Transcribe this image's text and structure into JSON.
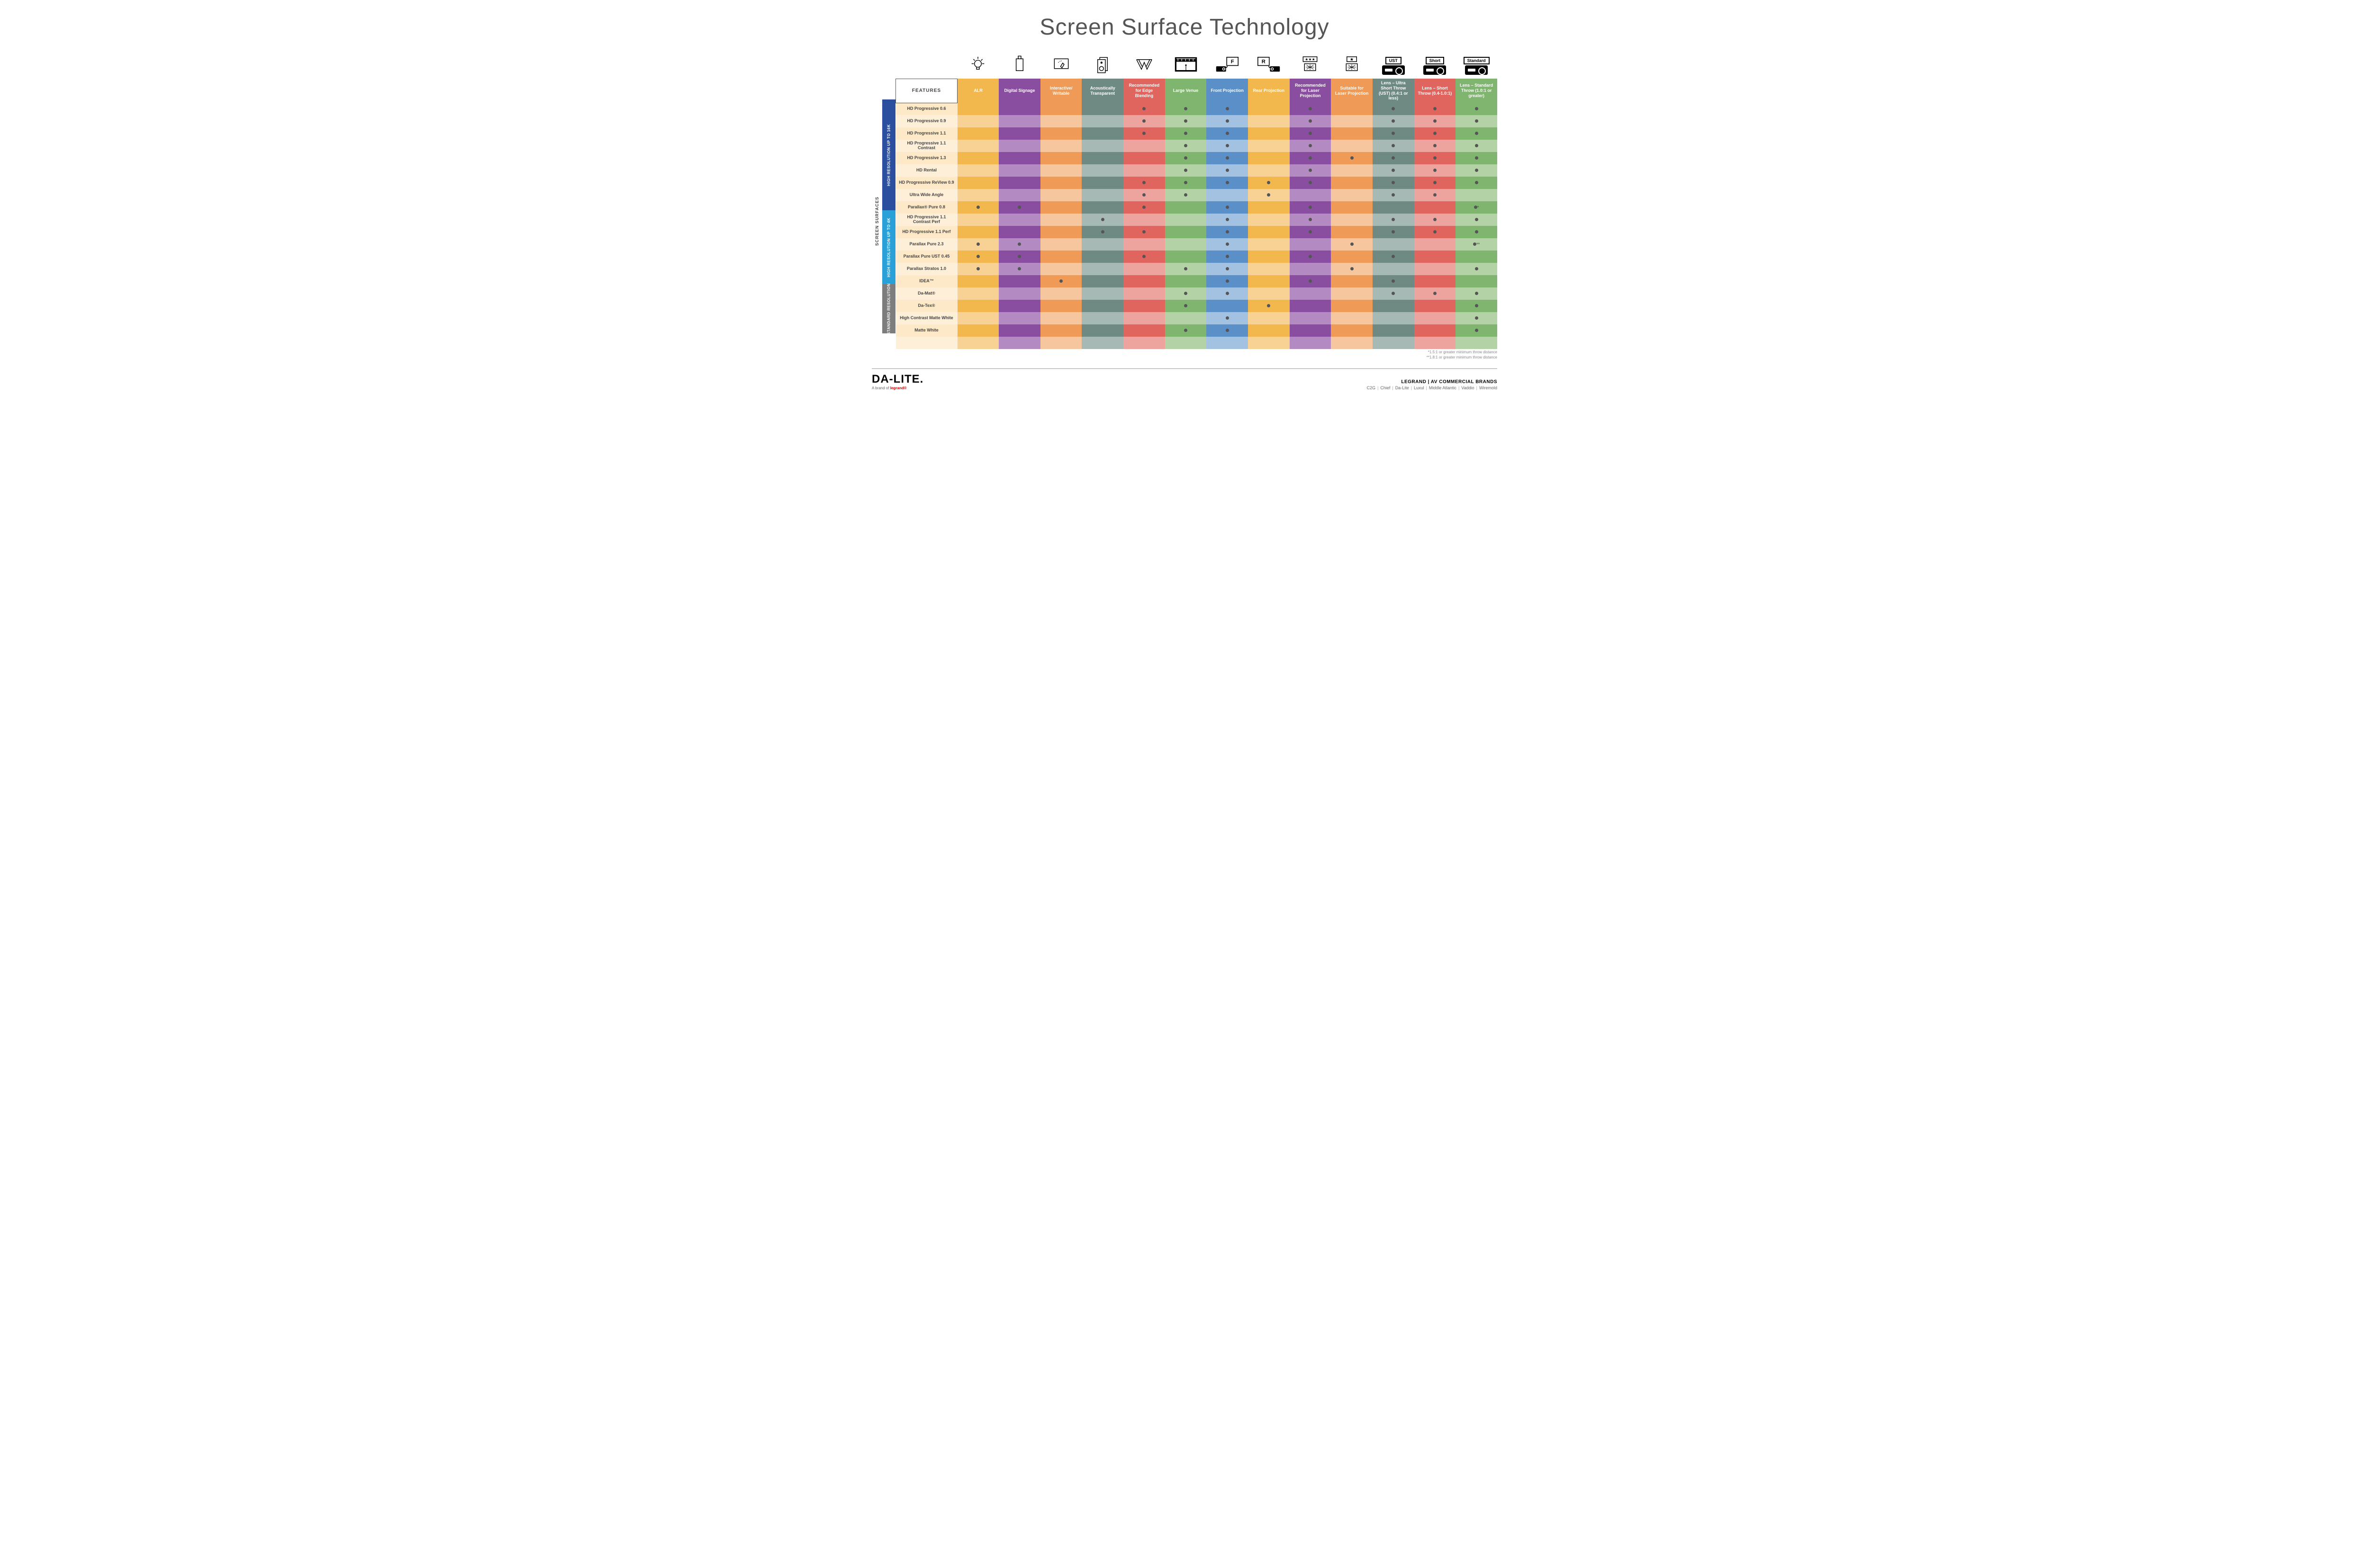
{
  "title": "Screen Surface Technology",
  "outerLabel": "SCREEN SURFACES",
  "groups": [
    {
      "label": "HIGH RESOLUTION UP TO 16K",
      "color": "#2b4f9e",
      "rows": 9
    },
    {
      "label": "HIGH RESOLUTION UP TO 4K",
      "color": "#2aa0d8",
      "rows": 6
    },
    {
      "label": "STANDARD RESOLUTION",
      "color": "#7d7d7d",
      "rows": 4
    }
  ],
  "columns": [
    {
      "key": "alr",
      "label": "ALR",
      "color": "#f2b84d",
      "alt": "#f7d294",
      "icon": "bulb"
    },
    {
      "key": "signage",
      "label": "Digital Signage",
      "color": "#8a4ea0",
      "alt": "#b38bc2",
      "icon": "signage"
    },
    {
      "key": "writable",
      "label": "Interactive/ Writable",
      "color": "#ef9a56",
      "alt": "#f6c79f",
      "icon": "writable"
    },
    {
      "key": "acoustic",
      "label": "Acoustically Transparent",
      "color": "#6e8a83",
      "alt": "#a7b9b4",
      "icon": "acoustic"
    },
    {
      "key": "edge",
      "label": "Recommended for Edge Blending",
      "color": "#e0655e",
      "alt": "#eda39e",
      "icon": "edge"
    },
    {
      "key": "large",
      "label": "Large Venue",
      "color": "#7fb56f",
      "alt": "#b3d3a7",
      "icon": "large"
    },
    {
      "key": "front",
      "label": "Front Projection",
      "color": "#5a8fc8",
      "alt": "#a3c1e0",
      "icon": "front"
    },
    {
      "key": "rear",
      "label": "Rear Projection",
      "color": "#f2b84d",
      "alt": "#f7d294",
      "icon": "rear"
    },
    {
      "key": "reclaser",
      "label": "Recommended for Laser Projection",
      "color": "#8a4ea0",
      "alt": "#b38bc2",
      "icon": "reclaser"
    },
    {
      "key": "suitlaser",
      "label": "Suitable for Laser Projection",
      "color": "#ef9a56",
      "alt": "#f6c79f",
      "icon": "suitlaser"
    },
    {
      "key": "ust",
      "label": "Lens – Ultra Short Throw (UST) (0.4:1 or less)",
      "color": "#6e8a83",
      "alt": "#a7b9b4",
      "icon": "proj",
      "projLabel": "UST"
    },
    {
      "key": "short",
      "label": "Lens – Short Throw (0.4-1.0:1)",
      "color": "#e0655e",
      "alt": "#eda39e",
      "icon": "proj",
      "projLabel": "Short"
    },
    {
      "key": "std",
      "label": "Lens – Standard Throw (1.0:1 or greater)",
      "color": "#7fb56f",
      "alt": "#b3d3a7",
      "icon": "proj",
      "projLabel": "Standard"
    }
  ],
  "featuresHeader": "FEATURES",
  "rows": [
    {
      "name": "HD Progressive 0.6",
      "dots": {
        "edge": "•",
        "large": "•",
        "front": "•",
        "reclaser": "•",
        "ust": "•",
        "short": "•",
        "std": "•"
      }
    },
    {
      "name": "HD Progressive 0.9",
      "dots": {
        "edge": "•",
        "large": "•",
        "front": "•",
        "reclaser": "•",
        "ust": "•",
        "short": "•",
        "std": "•"
      }
    },
    {
      "name": "HD Progressive 1.1",
      "dots": {
        "edge": "•",
        "large": "•",
        "front": "•",
        "reclaser": "•",
        "ust": "•",
        "short": "•",
        "std": "•"
      }
    },
    {
      "name": "HD Progressive 1.1 Contrast",
      "dots": {
        "large": "•",
        "front": "•",
        "reclaser": "•",
        "ust": "•",
        "short": "•",
        "std": "•"
      }
    },
    {
      "name": "HD Progressive 1.3",
      "dots": {
        "large": "•",
        "front": "•",
        "reclaser": "•",
        "suitlaser": "•",
        "ust": "•",
        "short": "•",
        "std": "•"
      }
    },
    {
      "name": "HD Rental",
      "dots": {
        "large": "•",
        "front": "•",
        "reclaser": "•",
        "ust": "•",
        "short": "•",
        "std": "•"
      }
    },
    {
      "name": "HD Progressive ReView 0.9",
      "dots": {
        "edge": "•",
        "large": "•",
        "front": "•",
        "rear": "•",
        "reclaser": "•",
        "ust": "•",
        "short": "•",
        "std": "•"
      }
    },
    {
      "name": "Ultra Wide Angle",
      "dots": {
        "edge": "•",
        "large": "•",
        "rear": "•",
        "ust": "•",
        "short": "•"
      }
    },
    {
      "name": "Parallax® Pure 0.8",
      "dots": {
        "alr": "•",
        "signage": "•",
        "edge": "•",
        "front": "•",
        "reclaser": "•",
        "std": "•*"
      }
    },
    {
      "name": "HD Progressive 1.1 Contrast Perf",
      "dots": {
        "acoustic": "•",
        "front": "•",
        "reclaser": "•",
        "ust": "•",
        "short": "•",
        "std": "•"
      }
    },
    {
      "name": "HD Progressive 1.1 Perf",
      "dots": {
        "acoustic": "•",
        "edge": "•",
        "front": "•",
        "reclaser": "•",
        "ust": "•",
        "short": "•",
        "std": "•"
      }
    },
    {
      "name": "Parallax Pure 2.3",
      "dots": {
        "alr": "•",
        "signage": "•",
        "front": "•",
        "suitlaser": "•",
        "std": "•**"
      }
    },
    {
      "name": "Parallax Pure UST 0.45",
      "dots": {
        "alr": "•",
        "signage": "•",
        "edge": "•",
        "front": "•",
        "reclaser": "•",
        "ust": "•"
      }
    },
    {
      "name": "Parallax Stratos 1.0",
      "dots": {
        "alr": "•",
        "signage": "•",
        "large": "•",
        "front": "•",
        "suitlaser": "•",
        "std": "•"
      }
    },
    {
      "name": "IDEA™",
      "dots": {
        "writable": "•",
        "front": "•",
        "reclaser": "•",
        "ust": "•"
      }
    },
    {
      "name": "Da-Mat®",
      "dots": {
        "large": "•",
        "front": "•",
        "ust": "•",
        "short": "•",
        "std": "•"
      }
    },
    {
      "name": "Da-Tex®",
      "dots": {
        "large": "•",
        "rear": "•",
        "std": "•"
      }
    },
    {
      "name": "High Contrast Matte White",
      "dots": {
        "front": "•",
        "std": "•"
      }
    },
    {
      "name": "Matte White",
      "dots": {
        "large": "•",
        "front": "•",
        "std": "•"
      }
    }
  ],
  "rowNameColors": {
    "base": "#fde9c8",
    "alt": "#feefd9"
  },
  "footnotes": [
    "*1.5:1 or greater minimum throw distance",
    "**1.8:1 or greater minimum throw distance"
  ],
  "footer": {
    "logo": "DA-LITE.",
    "logoSubPrefix": "A brand of ",
    "logoSubBrand": "legrand®",
    "brandsHeader": "LEGRAND | AV COMMERCIAL BRANDS",
    "brands": [
      "C2G",
      "Chief",
      "Da-Lite",
      "Luxul",
      "Middle Atlantic",
      "Vaddio",
      "Wiremold"
    ]
  }
}
